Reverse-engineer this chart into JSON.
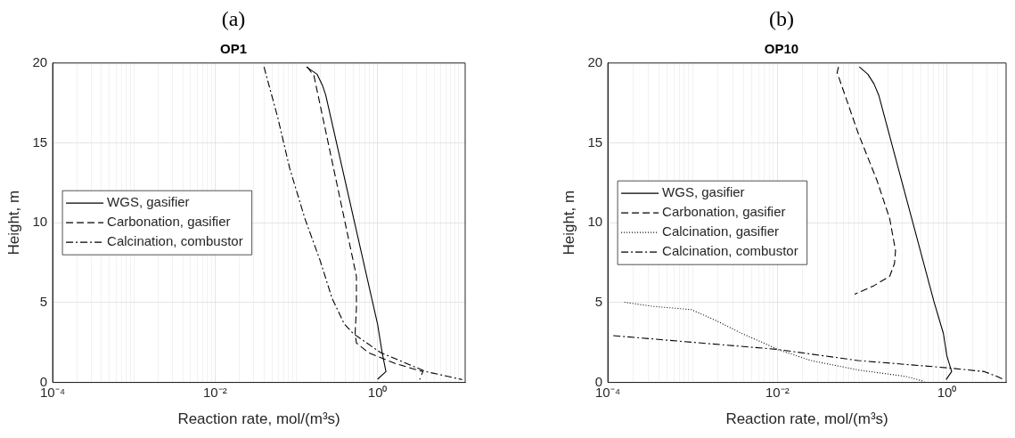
{
  "chart_data": [
    {
      "type": "line",
      "title": "(a)",
      "subtitle": "OP1",
      "xlabel": "Reaction rate, mol/(m³s)",
      "ylabel": "Height, m",
      "log": "x",
      "grid": true,
      "legend": "left",
      "xlim": [
        0.0001,
        12
      ],
      "ylim": [
        0,
        20
      ],
      "xticks": [
        {
          "value": 0.0001,
          "label": "10⁻⁴"
        },
        {
          "value": 0.0002,
          "label": null
        },
        {
          "value": 0.0003,
          "label": null
        },
        {
          "value": 0.0004,
          "label": null
        },
        {
          "value": 0.0005,
          "label": null
        },
        {
          "value": 0.0006,
          "label": null
        },
        {
          "value": 0.0007,
          "label": null
        },
        {
          "value": 0.0008,
          "label": null
        },
        {
          "value": 0.0009,
          "label": null
        },
        {
          "value": 0.001,
          "label": null
        },
        {
          "value": 0.002,
          "label": null
        },
        {
          "value": 0.003,
          "label": null
        },
        {
          "value": 0.004,
          "label": null
        },
        {
          "value": 0.005,
          "label": null
        },
        {
          "value": 0.006,
          "label": null
        },
        {
          "value": 0.007,
          "label": null
        },
        {
          "value": 0.008,
          "label": null
        },
        {
          "value": 0.009,
          "label": null
        },
        {
          "value": 0.01,
          "label": "10⁻²"
        },
        {
          "value": 0.02,
          "label": null
        },
        {
          "value": 0.03,
          "label": null
        },
        {
          "value": 0.04,
          "label": null
        },
        {
          "value": 0.05,
          "label": null
        },
        {
          "value": 0.06,
          "label": null
        },
        {
          "value": 0.07,
          "label": null
        },
        {
          "value": 0.08,
          "label": null
        },
        {
          "value": 0.09,
          "label": null
        },
        {
          "value": 0.1,
          "label": null
        },
        {
          "value": 0.2,
          "label": null
        },
        {
          "value": 0.3,
          "label": null
        },
        {
          "value": 0.4,
          "label": null
        },
        {
          "value": 0.5,
          "label": null
        },
        {
          "value": 0.6,
          "label": null
        },
        {
          "value": 0.7,
          "label": null
        },
        {
          "value": 0.8,
          "label": null
        },
        {
          "value": 0.9,
          "label": null
        },
        {
          "value": 1,
          "label": "10⁰"
        },
        {
          "value": 2,
          "label": null
        },
        {
          "value": 3,
          "label": null
        },
        {
          "value": 4,
          "label": null
        },
        {
          "value": 5,
          "label": null
        },
        {
          "value": 6,
          "label": null
        },
        {
          "value": 7,
          "label": null
        },
        {
          "value": 8,
          "label": null
        },
        {
          "value": 9,
          "label": null
        },
        {
          "value": 10,
          "label": null
        }
      ],
      "yticks": [
        0,
        5,
        10,
        15,
        20
      ],
      "series": [
        {
          "name": "WGS, gasifier",
          "color": "#000000",
          "line_style": "solid",
          "x": [
            0.133,
            0.18,
            0.21,
            0.23,
            1.0,
            1.14,
            1.27,
            1.0
          ],
          "values": [
            19.76,
            19.3,
            18.6,
            18.0,
            3.67,
            1.87,
            0.68,
            0.2
          ]
        },
        {
          "name": "Carbonation, gasifier",
          "color": "#000000",
          "line_style": "dashed",
          "x": [
            0.136,
            0.165,
            0.39,
            0.55,
            0.55,
            0.53,
            0.55,
            0.77,
            1.67,
            3.62,
            3.3
          ],
          "values": [
            19.76,
            19.2,
            10.24,
            6.65,
            4.66,
            3.07,
            2.47,
            1.87,
            1.18,
            0.68,
            0.18
          ]
        },
        {
          "name": "Calcination, combustor",
          "color": "#000000",
          "line_style": "dashdot",
          "x": [
            0.04,
            0.059,
            0.083,
            0.128,
            0.196,
            0.276,
            0.389,
            0.5,
            1.09,
            3.95,
            11.0
          ],
          "values": [
            19.76,
            16.6,
            13.4,
            10.24,
            7.65,
            5.26,
            3.67,
            3.07,
            1.87,
            0.68,
            0.18
          ]
        }
      ]
    },
    {
      "type": "line",
      "title": "(b)",
      "subtitle": "OP10",
      "xlabel": "Reaction rate, mol/(m³s)",
      "ylabel": "Height, m",
      "log": "x",
      "grid": true,
      "legend": "left",
      "xlim": [
        0.0001,
        5
      ],
      "ylim": [
        0,
        20
      ],
      "xticks": [
        {
          "value": 0.0001,
          "label": "10⁻⁴"
        },
        {
          "value": 0.0002,
          "label": null
        },
        {
          "value": 0.0003,
          "label": null
        },
        {
          "value": 0.0004,
          "label": null
        },
        {
          "value": 0.0005,
          "label": null
        },
        {
          "value": 0.0006,
          "label": null
        },
        {
          "value": 0.0007,
          "label": null
        },
        {
          "value": 0.0008,
          "label": null
        },
        {
          "value": 0.0009,
          "label": null
        },
        {
          "value": 0.001,
          "label": null
        },
        {
          "value": 0.002,
          "label": null
        },
        {
          "value": 0.003,
          "label": null
        },
        {
          "value": 0.004,
          "label": null
        },
        {
          "value": 0.005,
          "label": null
        },
        {
          "value": 0.006,
          "label": null
        },
        {
          "value": 0.007,
          "label": null
        },
        {
          "value": 0.008,
          "label": null
        },
        {
          "value": 0.009,
          "label": null
        },
        {
          "value": 0.01,
          "label": "10⁻²"
        },
        {
          "value": 0.02,
          "label": null
        },
        {
          "value": 0.03,
          "label": null
        },
        {
          "value": 0.04,
          "label": null
        },
        {
          "value": 0.05,
          "label": null
        },
        {
          "value": 0.06,
          "label": null
        },
        {
          "value": 0.07,
          "label": null
        },
        {
          "value": 0.08,
          "label": null
        },
        {
          "value": 0.09,
          "label": null
        },
        {
          "value": 0.1,
          "label": null
        },
        {
          "value": 0.2,
          "label": null
        },
        {
          "value": 0.3,
          "label": null
        },
        {
          "value": 0.4,
          "label": null
        },
        {
          "value": 0.5,
          "label": null
        },
        {
          "value": 0.6,
          "label": null
        },
        {
          "value": 0.7,
          "label": null
        },
        {
          "value": 0.8,
          "label": null
        },
        {
          "value": 0.9,
          "label": null
        },
        {
          "value": 1,
          "label": "10⁰"
        },
        {
          "value": 2,
          "label": null
        },
        {
          "value": 3,
          "label": null
        },
        {
          "value": 4,
          "label": null
        }
      ],
      "yticks": [
        0,
        5,
        10,
        15,
        20
      ],
      "series": [
        {
          "name": "WGS, gasifier",
          "color": "#000000",
          "line_style": "solid",
          "x": [
            0.0927,
            0.117,
            0.138,
            0.157,
            0.705,
            0.91,
            1.0,
            1.11,
            1.14,
            0.98
          ],
          "values": [
            19.76,
            19.3,
            18.7,
            18.0,
            5.06,
            3.07,
            1.67,
            0.88,
            0.68,
            0.18
          ]
        },
        {
          "name": "Carbonation, gasifier",
          "color": "#000000",
          "line_style": "dashed",
          "x": [
            0.0526,
            0.0508,
            0.09,
            0.151,
            0.212,
            0.248,
            0.241,
            0.212,
            0.138,
            0.0815
          ],
          "values": [
            19.76,
            19.4,
            15.6,
            12.6,
            10.24,
            8.25,
            7.45,
            6.65,
            6.06,
            5.52
          ]
        },
        {
          "name": "Calcination, gasifier",
          "color": "#000000",
          "line_style": "dotted",
          "x": [
            0.000157,
            0.000346,
            0.000966,
            0.00192,
            0.0038,
            0.0069,
            0.01,
            0.025,
            0.09,
            0.326,
            0.544
          ],
          "values": [
            5.02,
            4.76,
            4.56,
            3.86,
            3.07,
            2.47,
            2.07,
            1.37,
            0.78,
            0.38,
            0.06
          ]
        },
        {
          "name": "Calcination, combustor",
          "color": "#000000",
          "line_style": "dashdot",
          "x": [
            0.000116,
            0.01,
            0.09,
            1.0,
            2.77,
            3.9,
            4.7
          ],
          "values": [
            2.93,
            2.07,
            1.37,
            0.92,
            0.68,
            0.38,
            0.18
          ]
        }
      ]
    }
  ]
}
